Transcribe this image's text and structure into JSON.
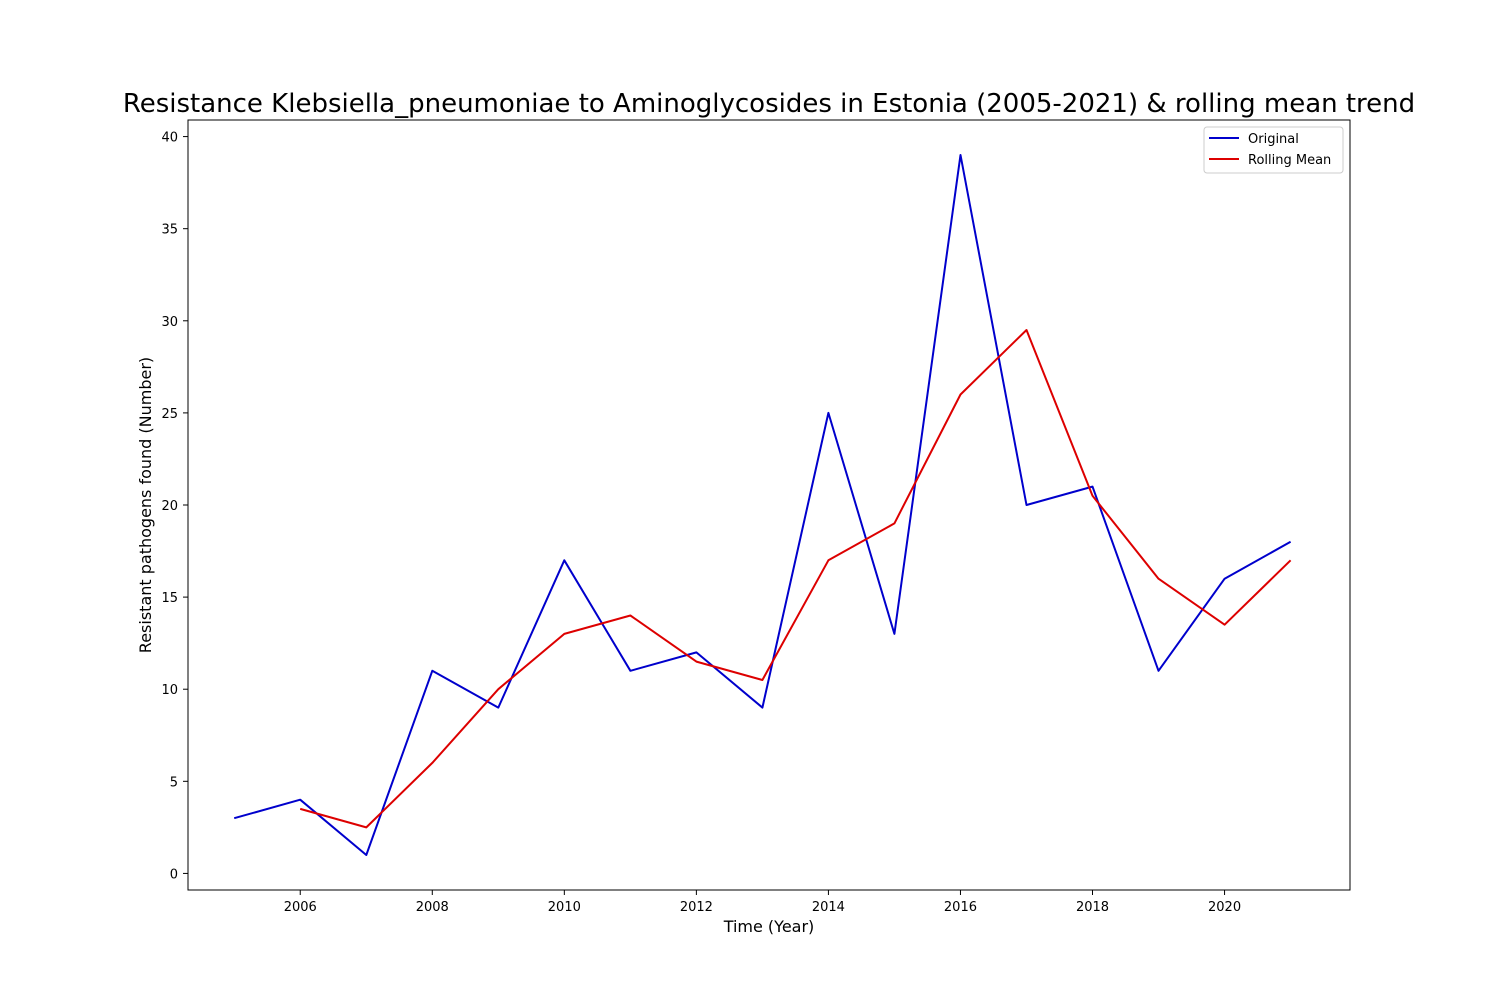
{
  "chart_data": {
    "type": "line",
    "title": "Resistance Klebsiella_pneumoniae to Aminoglycosides in Estonia (2005-2021) & rolling mean trend",
    "xlabel": "Time (Year)",
    "ylabel": "Resistant pathogens found (Number)",
    "xlim": [
      2004.3,
      2021.9
    ],
    "ylim": [
      -0.9,
      40.9
    ],
    "x_ticks": [
      2006,
      2008,
      2010,
      2012,
      2014,
      2016,
      2018,
      2020
    ],
    "y_ticks": [
      0,
      5,
      10,
      15,
      20,
      25,
      30,
      35,
      40
    ],
    "grid": false,
    "legend_position": "top-right",
    "series": [
      {
        "name": "Original",
        "color": "#0000cc",
        "x": [
          2005,
          2006,
          2007,
          2008,
          2009,
          2010,
          2011,
          2012,
          2013,
          2014,
          2015,
          2016,
          2017,
          2018,
          2019,
          2020,
          2021
        ],
        "values": [
          3,
          4,
          1,
          11,
          9,
          17,
          11,
          12,
          9,
          25,
          13,
          39,
          20,
          21,
          11,
          16,
          18
        ]
      },
      {
        "name": "Rolling Mean",
        "color": "#dd0000",
        "x": [
          2006,
          2007,
          2008,
          2009,
          2010,
          2011,
          2012,
          2013,
          2014,
          2015,
          2016,
          2017,
          2018,
          2019,
          2020,
          2021
        ],
        "values": [
          3.5,
          2.5,
          6,
          10,
          13,
          14,
          11.5,
          10.5,
          17,
          19,
          26,
          29.5,
          20.5,
          16,
          13.5,
          17
        ]
      }
    ]
  }
}
